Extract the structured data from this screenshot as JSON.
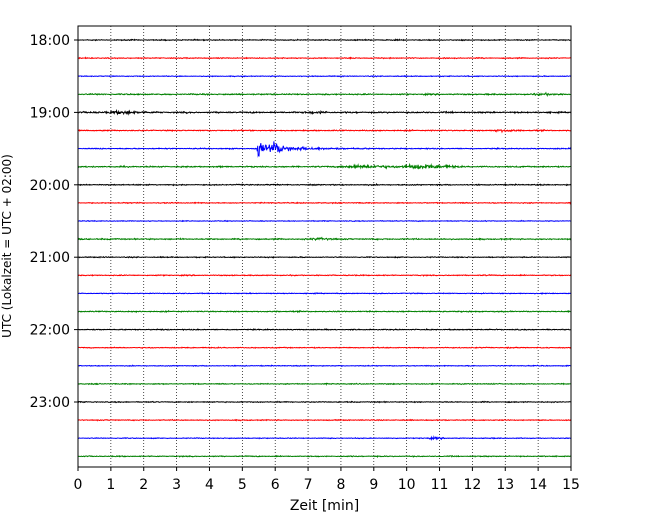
{
  "chart_data": {
    "type": "line",
    "title": "",
    "xlabel": "Zeit  [min]",
    "ylabel": "UTC (Lokalzeit = UTC + 02:00)",
    "xlim": [
      0,
      15
    ],
    "x_ticks": [
      0,
      1,
      2,
      3,
      4,
      5,
      6,
      7,
      8,
      9,
      10,
      11,
      12,
      13,
      14,
      15
    ],
    "vertical_grid": "dotted",
    "trace_interval_min": 15,
    "y_tick_labels": [
      "18:00",
      "19:00",
      "20:00",
      "21:00",
      "22:00",
      "23:00"
    ],
    "trace_colors": [
      "#000000",
      "#ff0000",
      "#0000ff",
      "#008000"
    ],
    "traces": [
      {
        "start": "18:00",
        "color": "#000000",
        "noise": 0.35,
        "events": []
      },
      {
        "start": "18:15",
        "color": "#ff0000",
        "noise": 0.35,
        "events": []
      },
      {
        "start": "18:30",
        "color": "#0000ff",
        "noise": 0.3,
        "events": []
      },
      {
        "start": "18:45",
        "color": "#008000",
        "noise": 0.45,
        "events": [
          {
            "t": 14.2,
            "amp": 0.7,
            "dur": 0.6
          }
        ]
      },
      {
        "start": "19:00",
        "color": "#000000",
        "noise": 0.5,
        "events": [
          {
            "t": 1.4,
            "amp": 0.9,
            "dur": 1.2
          },
          {
            "t": 7.2,
            "amp": 0.6,
            "dur": 0.8
          }
        ]
      },
      {
        "start": "19:15",
        "color": "#ff0000",
        "noise": 0.4,
        "events": [
          {
            "t": 13.0,
            "amp": 0.7,
            "dur": 0.8
          }
        ]
      },
      {
        "start": "19:30",
        "color": "#0000ff",
        "noise": 0.35,
        "events": [
          {
            "t": 5.45,
            "amp": 4.5,
            "dur": 4.5,
            "quake": true
          }
        ]
      },
      {
        "start": "19:45",
        "color": "#008000",
        "noise": 0.45,
        "events": [
          {
            "t": 8.8,
            "amp": 1.0,
            "dur": 1.5
          },
          {
            "t": 10.5,
            "amp": 1.6,
            "dur": 1.6
          }
        ]
      },
      {
        "start": "20:00",
        "color": "#000000",
        "noise": 0.4,
        "events": []
      },
      {
        "start": "20:15",
        "color": "#ff0000",
        "noise": 0.35,
        "events": []
      },
      {
        "start": "20:30",
        "color": "#0000ff",
        "noise": 0.28,
        "events": []
      },
      {
        "start": "20:45",
        "color": "#008000",
        "noise": 0.45,
        "events": [
          {
            "t": 7.4,
            "amp": 0.7,
            "dur": 0.6
          }
        ]
      },
      {
        "start": "21:00",
        "color": "#000000",
        "noise": 0.35,
        "events": []
      },
      {
        "start": "21:15",
        "color": "#ff0000",
        "noise": 0.35,
        "events": []
      },
      {
        "start": "21:30",
        "color": "#0000ff",
        "noise": 0.3,
        "events": []
      },
      {
        "start": "21:45",
        "color": "#008000",
        "noise": 0.4,
        "events": []
      },
      {
        "start": "22:00",
        "color": "#000000",
        "noise": 0.35,
        "events": []
      },
      {
        "start": "22:15",
        "color": "#ff0000",
        "noise": 0.35,
        "events": []
      },
      {
        "start": "22:30",
        "color": "#0000ff",
        "noise": 0.3,
        "events": []
      },
      {
        "start": "22:45",
        "color": "#008000",
        "noise": 0.35,
        "events": []
      },
      {
        "start": "23:00",
        "color": "#000000",
        "noise": 0.35,
        "events": []
      },
      {
        "start": "23:15",
        "color": "#ff0000",
        "noise": 0.35,
        "events": []
      },
      {
        "start": "23:30",
        "color": "#0000ff",
        "noise": 0.3,
        "events": [
          {
            "t": 10.9,
            "amp": 0.6,
            "dur": 0.5
          }
        ]
      },
      {
        "start": "23:45",
        "color": "#008000",
        "noise": 0.35,
        "events": []
      }
    ]
  }
}
